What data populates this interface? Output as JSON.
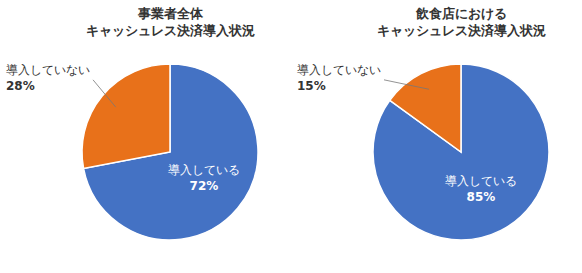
{
  "chart_data": [
    {
      "type": "pie",
      "title": "事業者全体\nキャッシュレス決済導入状況",
      "categories": [
        "導入している",
        "導入していない"
      ],
      "values": [
        72,
        28
      ],
      "value_labels": [
        "72%",
        "28%"
      ],
      "colors": [
        "#4472C4",
        "#E8711A"
      ],
      "data_labels": true
    },
    {
      "type": "pie",
      "title": "飲食店における\nキャッシュレス決済導入状況",
      "categories": [
        "導入している",
        "導入していない"
      ],
      "values": [
        85,
        15
      ],
      "value_labels": [
        "85%",
        "15%"
      ],
      "colors": [
        "#4472C4",
        "#E8711A"
      ],
      "data_labels": true
    }
  ]
}
